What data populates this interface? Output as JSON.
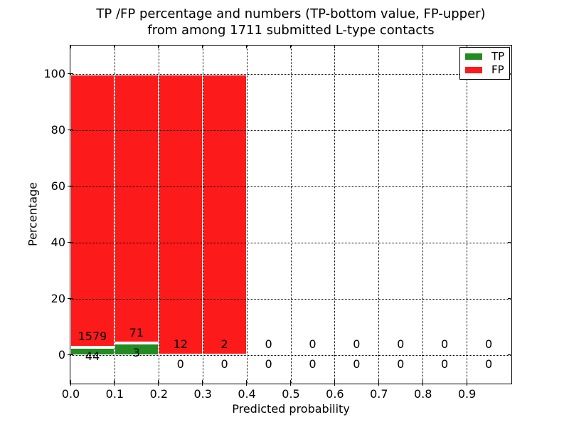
{
  "figure": {
    "title_line1": "TP /FP percentage and numbers (TP-bottom value, FP-upper)",
    "title_line2": "from among 1711 submitted L-type contacts",
    "xlabel": "Predicted probability",
    "ylabel": "Percentage"
  },
  "legend": {
    "entries": [
      {
        "label": "TP",
        "color": "#228b22"
      },
      {
        "label": "FP",
        "color": "#fc1a1a"
      }
    ]
  },
  "chart_data": {
    "type": "bar",
    "stacked": true,
    "title": "TP /FP percentage and numbers (TP-bottom value, FP-upper) from among 1711 submitted L-type contacts",
    "xlabel": "Predicted probability",
    "ylabel": "Percentage",
    "xlim": [
      0.0,
      1.0
    ],
    "ylim": [
      -10,
      110
    ],
    "grid": "dotted",
    "legend_position": "upper right",
    "xtick_labels": [
      "0.0",
      "0.1",
      "0.2",
      "0.3",
      "0.4",
      "0.5",
      "0.6",
      "0.7",
      "0.8",
      "0.9"
    ],
    "ytick_values": [
      0,
      20,
      40,
      60,
      80,
      100
    ],
    "ytick_labels": [
      "0",
      "20",
      "40",
      "60",
      "80",
      "100"
    ],
    "bin_edges": [
      0.0,
      0.1,
      0.2,
      0.3,
      0.4,
      0.5,
      0.6,
      0.7,
      0.8,
      0.9,
      1.0
    ],
    "series": [
      {
        "name": "TP",
        "color": "#228b22",
        "counts": [
          44,
          3,
          0,
          0,
          0,
          0,
          0,
          0,
          0,
          0
        ]
      },
      {
        "name": "FP",
        "color": "#fc1a1a",
        "counts": [
          1579,
          71,
          12,
          2,
          0,
          0,
          0,
          0,
          0,
          0
        ]
      }
    ],
    "bar_value_unit": "percent of bin total, stacked to 100% for non-empty bins"
  }
}
